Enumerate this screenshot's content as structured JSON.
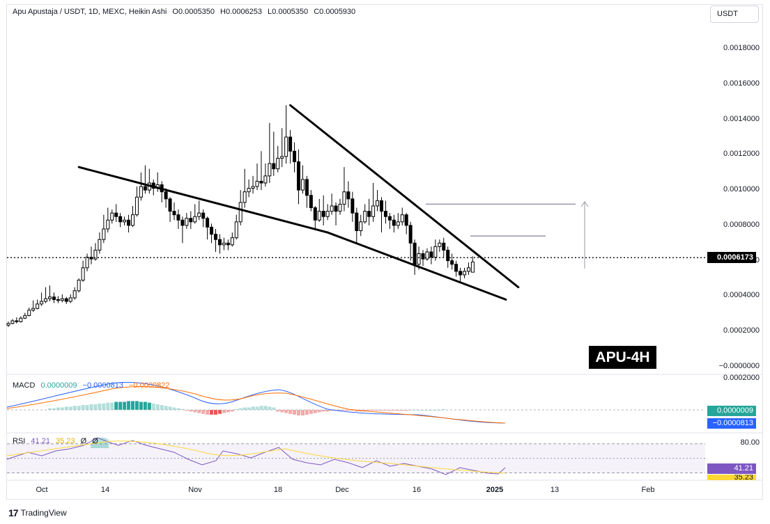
{
  "header": {
    "symbol": "Apu Apustaja / USDT, 1D, MEXC, Heikin Ashi",
    "open": "O0.0005350",
    "high": "H0.0006253",
    "low": "L0.0005350",
    "close": "C0.0005930"
  },
  "currency_button": "USDT",
  "current_price_label": "0.0006173",
  "watermark": "APU-4H",
  "macd": {
    "label": "MACD",
    "hist": "0.0000009",
    "macd": "−0.0000813",
    "signal": "−0.0000822",
    "tag_hist": "0.0000009",
    "tag_macd": "−0.0000813",
    "axis_top": "0.0002000"
  },
  "rsi": {
    "label": "RSI",
    "value": "41.21",
    "ma": "35.23",
    "extra1": "Ø",
    "extra2": "Ø",
    "axis_80": "80.00",
    "tag_value": "41.21",
    "tag_ma": "35.23"
  },
  "branding": "TradingView",
  "colors": {
    "up": "#26a69a",
    "down": "#ef5350",
    "candle": "#000000",
    "macd_line": "#2962ff",
    "signal_line": "#ff6d00",
    "rsi_line": "#7e57c2",
    "rsi_ma": "#fdd835",
    "target_line": "#9598a1"
  },
  "chart_data": {
    "type": "candlestick",
    "style": "Heikin Ashi",
    "y_ticks": [
      "0.0018000",
      "0.0016000",
      "0.0014000",
      "0.0012000",
      "0.0010000",
      "0.0008000",
      "0.0006000",
      "0.0004000",
      "0.0002000",
      "−0.0000000"
    ],
    "ylim": [
      0,
      0.0018
    ],
    "x_ticks": [
      "Oct",
      "14",
      "Nov",
      "18",
      "Dec",
      "16",
      "2025",
      "13",
      "Feb"
    ],
    "candles": [
      {
        "o": 0.000235,
        "c": 0.000245,
        "h": 0.000255,
        "l": 0.000225
      },
      {
        "o": 0.000245,
        "c": 0.00026,
        "h": 0.00027,
        "l": 0.00024
      },
      {
        "o": 0.00026,
        "c": 0.000255,
        "h": 0.00028,
        "l": 0.000245
      },
      {
        "o": 0.000255,
        "c": 0.000275,
        "h": 0.000285,
        "l": 0.00025
      },
      {
        "o": 0.000275,
        "c": 0.00029,
        "h": 0.000305,
        "l": 0.00027
      },
      {
        "o": 0.00029,
        "c": 0.00032,
        "h": 0.000335,
        "l": 0.000285
      },
      {
        "o": 0.00032,
        "c": 0.00033,
        "h": 0.000375,
        "l": 0.00031
      },
      {
        "o": 0.00033,
        "c": 0.000355,
        "h": 0.00038,
        "l": 0.000325
      },
      {
        "o": 0.000355,
        "c": 0.00037,
        "h": 0.00042,
        "l": 0.000345
      },
      {
        "o": 0.00037,
        "c": 0.000385,
        "h": 0.00045,
        "l": 0.00036
      },
      {
        "o": 0.000385,
        "c": 0.000395,
        "h": 0.00046,
        "l": 0.00037
      },
      {
        "o": 0.000395,
        "c": 0.00038,
        "h": 0.00042,
        "l": 0.00036
      },
      {
        "o": 0.00038,
        "c": 0.000375,
        "h": 0.0004,
        "l": 0.00036
      },
      {
        "o": 0.000375,
        "c": 0.000385,
        "h": 0.00041,
        "l": 0.000365
      },
      {
        "o": 0.000385,
        "c": 0.00037,
        "h": 0.000395,
        "l": 0.000355
      },
      {
        "o": 0.00037,
        "c": 0.00039,
        "h": 0.00041,
        "l": 0.00036
      },
      {
        "o": 0.00039,
        "c": 0.00043,
        "h": 0.00045,
        "l": 0.00038
      },
      {
        "o": 0.00043,
        "c": 0.00049,
        "h": 0.0005,
        "l": 0.00042
      },
      {
        "o": 0.00049,
        "c": 0.00056,
        "h": 0.0006,
        "l": 0.00048
      },
      {
        "o": 0.00056,
        "c": 0.00062,
        "h": 0.00064,
        "l": 0.00054
      },
      {
        "o": 0.00062,
        "c": 0.00061,
        "h": 0.00068,
        "l": 0.00058
      },
      {
        "o": 0.00061,
        "c": 0.00066,
        "h": 0.0007,
        "l": 0.0006
      },
      {
        "o": 0.00066,
        "c": 0.00072,
        "h": 0.00076,
        "l": 0.00064
      },
      {
        "o": 0.00072,
        "c": 0.00078,
        "h": 0.00086,
        "l": 0.0007
      },
      {
        "o": 0.00078,
        "c": 0.00083,
        "h": 0.0009,
        "l": 0.00076
      },
      {
        "o": 0.00083,
        "c": 0.00087,
        "h": 0.00089,
        "l": 0.00081
      },
      {
        "o": 0.00087,
        "c": 0.00085,
        "h": 0.00092,
        "l": 0.00082
      },
      {
        "o": 0.00085,
        "c": 0.00082,
        "h": 0.00087,
        "l": 0.00079
      },
      {
        "o": 0.00082,
        "c": 0.00083,
        "h": 0.00085,
        "l": 0.0008
      },
      {
        "o": 0.00083,
        "c": 0.0008,
        "h": 0.00086,
        "l": 0.00076
      },
      {
        "o": 0.0008,
        "c": 0.00086,
        "h": 0.00091,
        "l": 0.00079
      },
      {
        "o": 0.00086,
        "c": 0.00096,
        "h": 0.00102,
        "l": 0.00085
      },
      {
        "o": 0.00096,
        "c": 0.00102,
        "h": 0.0011,
        "l": 0.00094
      },
      {
        "o": 0.00102,
        "c": 0.001,
        "h": 0.00114,
        "l": 0.00098
      },
      {
        "o": 0.001,
        "c": 0.00104,
        "h": 0.00112,
        "l": 0.00098
      },
      {
        "o": 0.00104,
        "c": 0.00101,
        "h": 0.00106,
        "l": 0.00097
      },
      {
        "o": 0.00101,
        "c": 0.00103,
        "h": 0.0011,
        "l": 0.00099
      },
      {
        "o": 0.00103,
        "c": 0.00099,
        "h": 0.00105,
        "l": 0.00093
      },
      {
        "o": 0.00099,
        "c": 0.00095,
        "h": 0.00101,
        "l": 0.0009
      },
      {
        "o": 0.00095,
        "c": 0.00088,
        "h": 0.00096,
        "l": 0.00082
      },
      {
        "o": 0.00088,
        "c": 0.00086,
        "h": 0.00093,
        "l": 0.00083
      },
      {
        "o": 0.00086,
        "c": 0.00083,
        "h": 0.00089,
        "l": 0.00078
      },
      {
        "o": 0.00083,
        "c": 0.0008,
        "h": 0.00085,
        "l": 0.0007
      },
      {
        "o": 0.0008,
        "c": 0.00084,
        "h": 0.00087,
        "l": 0.00078
      },
      {
        "o": 0.00084,
        "c": 0.00082,
        "h": 0.00088,
        "l": 0.00078
      },
      {
        "o": 0.00082,
        "c": 0.00085,
        "h": 0.00092,
        "l": 0.00081
      },
      {
        "o": 0.00085,
        "c": 0.00087,
        "h": 0.00094,
        "l": 0.00083
      },
      {
        "o": 0.00087,
        "c": 0.00084,
        "h": 0.00089,
        "l": 0.00079
      },
      {
        "o": 0.00084,
        "c": 0.00079,
        "h": 0.00085,
        "l": 0.00072
      },
      {
        "o": 0.00079,
        "c": 0.00075,
        "h": 0.00081,
        "l": 0.0007
      },
      {
        "o": 0.00075,
        "c": 0.00072,
        "h": 0.00078,
        "l": 0.00065
      },
      {
        "o": 0.00072,
        "c": 0.00069,
        "h": 0.00075,
        "l": 0.00064
      },
      {
        "o": 0.00069,
        "c": 0.0007,
        "h": 0.00073,
        "l": 0.00066
      },
      {
        "o": 0.0007,
        "c": 0.00069,
        "h": 0.00072,
        "l": 0.00066
      },
      {
        "o": 0.00069,
        "c": 0.00073,
        "h": 0.00076,
        "l": 0.00068
      },
      {
        "o": 0.00073,
        "c": 0.00082,
        "h": 0.00086,
        "l": 0.00072
      },
      {
        "o": 0.00082,
        "c": 0.00093,
        "h": 0.001,
        "l": 0.0008
      },
      {
        "o": 0.00093,
        "c": 0.00099,
        "h": 0.00112,
        "l": 0.0009
      },
      {
        "o": 0.00099,
        "c": 0.00101,
        "h": 0.00106,
        "l": 0.00096
      },
      {
        "o": 0.00101,
        "c": 0.00102,
        "h": 0.00108,
        "l": 0.00098
      },
      {
        "o": 0.00102,
        "c": 0.00105,
        "h": 0.00115,
        "l": 0.001
      },
      {
        "o": 0.00105,
        "c": 0.00104,
        "h": 0.00122,
        "l": 0.001
      },
      {
        "o": 0.00104,
        "c": 0.00108,
        "h": 0.00115,
        "l": 0.00102
      },
      {
        "o": 0.00108,
        "c": 0.00115,
        "h": 0.00138,
        "l": 0.00104
      },
      {
        "o": 0.00115,
        "c": 0.00112,
        "h": 0.00133,
        "l": 0.00108
      },
      {
        "o": 0.00112,
        "c": 0.00118,
        "h": 0.00125,
        "l": 0.0011
      },
      {
        "o": 0.00118,
        "c": 0.00119,
        "h": 0.00135,
        "l": 0.00113
      },
      {
        "o": 0.00119,
        "c": 0.0013,
        "h": 0.00148,
        "l": 0.00115
      },
      {
        "o": 0.0013,
        "c": 0.00122,
        "h": 0.00134,
        "l": 0.00115
      },
      {
        "o": 0.00122,
        "c": 0.00116,
        "h": 0.00127,
        "l": 0.0011
      },
      {
        "o": 0.00116,
        "c": 0.001,
        "h": 0.00123,
        "l": 0.00092
      },
      {
        "o": 0.001,
        "c": 0.00106,
        "h": 0.00114,
        "l": 0.00098
      },
      {
        "o": 0.00106,
        "c": 0.00097,
        "h": 0.00108,
        "l": 0.0009
      },
      {
        "o": 0.00097,
        "c": 0.0009,
        "h": 0.001,
        "l": 0.00088
      },
      {
        "o": 0.0009,
        "c": 0.00083,
        "h": 0.00091,
        "l": 0.00078
      },
      {
        "o": 0.00083,
        "c": 0.00088,
        "h": 0.00095,
        "l": 0.00082
      },
      {
        "o": 0.00088,
        "c": 0.00085,
        "h": 0.00097,
        "l": 0.0008
      },
      {
        "o": 0.00085,
        "c": 0.00088,
        "h": 0.00092,
        "l": 0.00083
      },
      {
        "o": 0.00088,
        "c": 0.00091,
        "h": 0.00098,
        "l": 0.00086
      },
      {
        "o": 0.00091,
        "c": 0.00088,
        "h": 0.00093,
        "l": 0.0008
      },
      {
        "o": 0.00088,
        "c": 0.00092,
        "h": 0.00095,
        "l": 0.00086
      },
      {
        "o": 0.00092,
        "c": 0.00099,
        "h": 0.00113,
        "l": 0.00088
      },
      {
        "o": 0.00099,
        "c": 0.00095,
        "h": 0.00105,
        "l": 0.0009
      },
      {
        "o": 0.00095,
        "c": 0.00087,
        "h": 0.00099,
        "l": 0.00082
      },
      {
        "o": 0.00087,
        "c": 0.00077,
        "h": 0.0009,
        "l": 0.0007
      },
      {
        "o": 0.00077,
        "c": 0.00082,
        "h": 0.00086,
        "l": 0.00074
      },
      {
        "o": 0.00082,
        "c": 0.00088,
        "h": 0.00092,
        "l": 0.00081
      },
      {
        "o": 0.00088,
        "c": 0.00085,
        "h": 0.00095,
        "l": 0.0008
      },
      {
        "o": 0.00085,
        "c": 0.00091,
        "h": 0.00104,
        "l": 0.00082
      },
      {
        "o": 0.00091,
        "c": 0.00094,
        "h": 0.001,
        "l": 0.00088
      },
      {
        "o": 0.00094,
        "c": 0.00088,
        "h": 0.00096,
        "l": 0.00076
      },
      {
        "o": 0.00088,
        "c": 0.00085,
        "h": 0.00094,
        "l": 0.00081
      },
      {
        "o": 0.00085,
        "c": 0.00083,
        "h": 0.00087,
        "l": 0.00078
      },
      {
        "o": 0.00083,
        "c": 0.0008,
        "h": 0.00086,
        "l": 0.00076
      },
      {
        "o": 0.0008,
        "c": 0.00082,
        "h": 0.00087,
        "l": 0.00078
      },
      {
        "o": 0.00082,
        "c": 0.00086,
        "h": 0.0009,
        "l": 0.0008
      },
      {
        "o": 0.00086,
        "c": 0.0008,
        "h": 0.00087,
        "l": 0.00075
      },
      {
        "o": 0.0008,
        "c": 0.0007,
        "h": 0.00082,
        "l": 0.0006
      },
      {
        "o": 0.0007,
        "c": 0.00058,
        "h": 0.00072,
        "l": 0.00052
      },
      {
        "o": 0.00058,
        "c": 0.00064,
        "h": 0.00068,
        "l": 0.00055
      },
      {
        "o": 0.00064,
        "c": 0.00061,
        "h": 0.00066,
        "l": 0.00057
      },
      {
        "o": 0.00061,
        "c": 0.00065,
        "h": 0.00067,
        "l": 0.0006
      },
      {
        "o": 0.00065,
        "c": 0.00062,
        "h": 0.00068,
        "l": 0.00058
      },
      {
        "o": 0.00062,
        "c": 0.00068,
        "h": 0.00072,
        "l": 0.0006
      },
      {
        "o": 0.00068,
        "c": 0.0007,
        "h": 0.00072,
        "l": 0.00065
      },
      {
        "o": 0.0007,
        "c": 0.00066,
        "h": 0.00073,
        "l": 0.00062
      },
      {
        "o": 0.00066,
        "c": 0.0006,
        "h": 0.00068,
        "l": 0.00056
      },
      {
        "o": 0.0006,
        "c": 0.00058,
        "h": 0.00064,
        "l": 0.00055
      },
      {
        "o": 0.00058,
        "c": 0.00054,
        "h": 0.0006,
        "l": 0.00051
      },
      {
        "o": 0.00054,
        "c": 0.00052,
        "h": 0.00056,
        "l": 0.00048
      },
      {
        "o": 0.00052,
        "c": 0.00054,
        "h": 0.00056,
        "l": 0.0005
      },
      {
        "o": 0.00054,
        "c": 0.00056,
        "h": 0.00059,
        "l": 0.00052
      },
      {
        "o": 0.000535,
        "c": 0.000593,
        "h": 0.000625,
        "l": 0.000535
      }
    ],
    "trendlines": [
      {
        "from": [
          17,
          0.00113
        ],
        "to": [
          77,
          0.00076
        ]
      },
      {
        "from": [
          77,
          0.00076
        ],
        "to": [
          120,
          0.00038
        ]
      },
      {
        "from": [
          68,
          0.00148
        ],
        "to": [
          123,
          0.00045
        ]
      }
    ],
    "targets": [
      0.00092,
      0.00074
    ],
    "macd": {
      "hist": [
        2,
        2,
        3,
        3,
        4,
        4,
        5,
        5,
        6,
        6,
        7,
        7,
        8,
        8,
        9,
        9,
        10,
        10,
        10,
        11,
        11,
        11,
        10,
        10,
        9,
        8,
        7,
        6,
        5,
        4,
        3,
        2,
        1,
        -1,
        -2,
        -3,
        -4,
        -5,
        -6,
        -6,
        -6,
        -5,
        -4,
        -3,
        -2,
        1,
        2,
        3,
        3,
        4,
        4,
        5,
        5,
        4,
        3,
        -2,
        -3,
        -4,
        -5,
        -6,
        -7,
        -7,
        -6,
        -5,
        -4,
        -3,
        -2,
        -2,
        -1,
        -1,
        -1,
        -1,
        -1,
        -1,
        -2,
        -2,
        -2,
        -1,
        -1,
        -1,
        -1,
        -1,
        -1,
        -1,
        -1,
        -1,
        -1,
        0,
        0,
        0,
        0,
        0,
        0,
        0,
        0,
        1
      ]
    },
    "rsi": {
      "value": 41.21,
      "ma": 35.23,
      "ylim": [
        20,
        85
      ],
      "bands": [
        70,
        30
      ]
    }
  }
}
